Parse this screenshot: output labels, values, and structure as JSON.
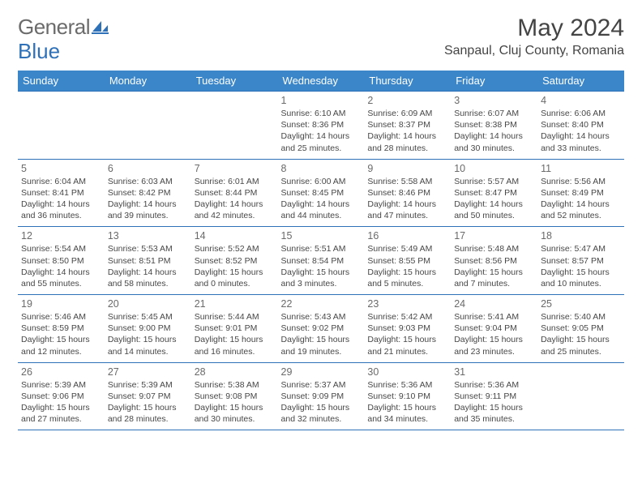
{
  "logo": {
    "part1": "General",
    "part2": "Blue"
  },
  "title": "May 2024",
  "location": "Sanpaul, Cluj County, Romania",
  "colors": {
    "header_bg": "#3b86c8",
    "header_text": "#ffffff",
    "rule": "#2e71b8",
    "body_text": "#474747",
    "daynum": "#6a6a6a",
    "title_text": "#444444",
    "logo_gray": "#6b6b6b",
    "logo_blue": "#2e71b8",
    "background": "#ffffff"
  },
  "day_headers": [
    "Sunday",
    "Monday",
    "Tuesday",
    "Wednesday",
    "Thursday",
    "Friday",
    "Saturday"
  ],
  "weeks": [
    [
      null,
      null,
      null,
      {
        "n": "1",
        "sr": "6:10 AM",
        "ss": "8:36 PM",
        "dl": "14 hours and 25 minutes."
      },
      {
        "n": "2",
        "sr": "6:09 AM",
        "ss": "8:37 PM",
        "dl": "14 hours and 28 minutes."
      },
      {
        "n": "3",
        "sr": "6:07 AM",
        "ss": "8:38 PM",
        "dl": "14 hours and 30 minutes."
      },
      {
        "n": "4",
        "sr": "6:06 AM",
        "ss": "8:40 PM",
        "dl": "14 hours and 33 minutes."
      }
    ],
    [
      {
        "n": "5",
        "sr": "6:04 AM",
        "ss": "8:41 PM",
        "dl": "14 hours and 36 minutes."
      },
      {
        "n": "6",
        "sr": "6:03 AM",
        "ss": "8:42 PM",
        "dl": "14 hours and 39 minutes."
      },
      {
        "n": "7",
        "sr": "6:01 AM",
        "ss": "8:44 PM",
        "dl": "14 hours and 42 minutes."
      },
      {
        "n": "8",
        "sr": "6:00 AM",
        "ss": "8:45 PM",
        "dl": "14 hours and 44 minutes."
      },
      {
        "n": "9",
        "sr": "5:58 AM",
        "ss": "8:46 PM",
        "dl": "14 hours and 47 minutes."
      },
      {
        "n": "10",
        "sr": "5:57 AM",
        "ss": "8:47 PM",
        "dl": "14 hours and 50 minutes."
      },
      {
        "n": "11",
        "sr": "5:56 AM",
        "ss": "8:49 PM",
        "dl": "14 hours and 52 minutes."
      }
    ],
    [
      {
        "n": "12",
        "sr": "5:54 AM",
        "ss": "8:50 PM",
        "dl": "14 hours and 55 minutes."
      },
      {
        "n": "13",
        "sr": "5:53 AM",
        "ss": "8:51 PM",
        "dl": "14 hours and 58 minutes."
      },
      {
        "n": "14",
        "sr": "5:52 AM",
        "ss": "8:52 PM",
        "dl": "15 hours and 0 minutes."
      },
      {
        "n": "15",
        "sr": "5:51 AM",
        "ss": "8:54 PM",
        "dl": "15 hours and 3 minutes."
      },
      {
        "n": "16",
        "sr": "5:49 AM",
        "ss": "8:55 PM",
        "dl": "15 hours and 5 minutes."
      },
      {
        "n": "17",
        "sr": "5:48 AM",
        "ss": "8:56 PM",
        "dl": "15 hours and 7 minutes."
      },
      {
        "n": "18",
        "sr": "5:47 AM",
        "ss": "8:57 PM",
        "dl": "15 hours and 10 minutes."
      }
    ],
    [
      {
        "n": "19",
        "sr": "5:46 AM",
        "ss": "8:59 PM",
        "dl": "15 hours and 12 minutes."
      },
      {
        "n": "20",
        "sr": "5:45 AM",
        "ss": "9:00 PM",
        "dl": "15 hours and 14 minutes."
      },
      {
        "n": "21",
        "sr": "5:44 AM",
        "ss": "9:01 PM",
        "dl": "15 hours and 16 minutes."
      },
      {
        "n": "22",
        "sr": "5:43 AM",
        "ss": "9:02 PM",
        "dl": "15 hours and 19 minutes."
      },
      {
        "n": "23",
        "sr": "5:42 AM",
        "ss": "9:03 PM",
        "dl": "15 hours and 21 minutes."
      },
      {
        "n": "24",
        "sr": "5:41 AM",
        "ss": "9:04 PM",
        "dl": "15 hours and 23 minutes."
      },
      {
        "n": "25",
        "sr": "5:40 AM",
        "ss": "9:05 PM",
        "dl": "15 hours and 25 minutes."
      }
    ],
    [
      {
        "n": "26",
        "sr": "5:39 AM",
        "ss": "9:06 PM",
        "dl": "15 hours and 27 minutes."
      },
      {
        "n": "27",
        "sr": "5:39 AM",
        "ss": "9:07 PM",
        "dl": "15 hours and 28 minutes."
      },
      {
        "n": "28",
        "sr": "5:38 AM",
        "ss": "9:08 PM",
        "dl": "15 hours and 30 minutes."
      },
      {
        "n": "29",
        "sr": "5:37 AM",
        "ss": "9:09 PM",
        "dl": "15 hours and 32 minutes."
      },
      {
        "n": "30",
        "sr": "5:36 AM",
        "ss": "9:10 PM",
        "dl": "15 hours and 34 minutes."
      },
      {
        "n": "31",
        "sr": "5:36 AM",
        "ss": "9:11 PM",
        "dl": "15 hours and 35 minutes."
      },
      null
    ]
  ],
  "labels": {
    "sunrise": "Sunrise:",
    "sunset": "Sunset:",
    "daylight": "Daylight:"
  }
}
